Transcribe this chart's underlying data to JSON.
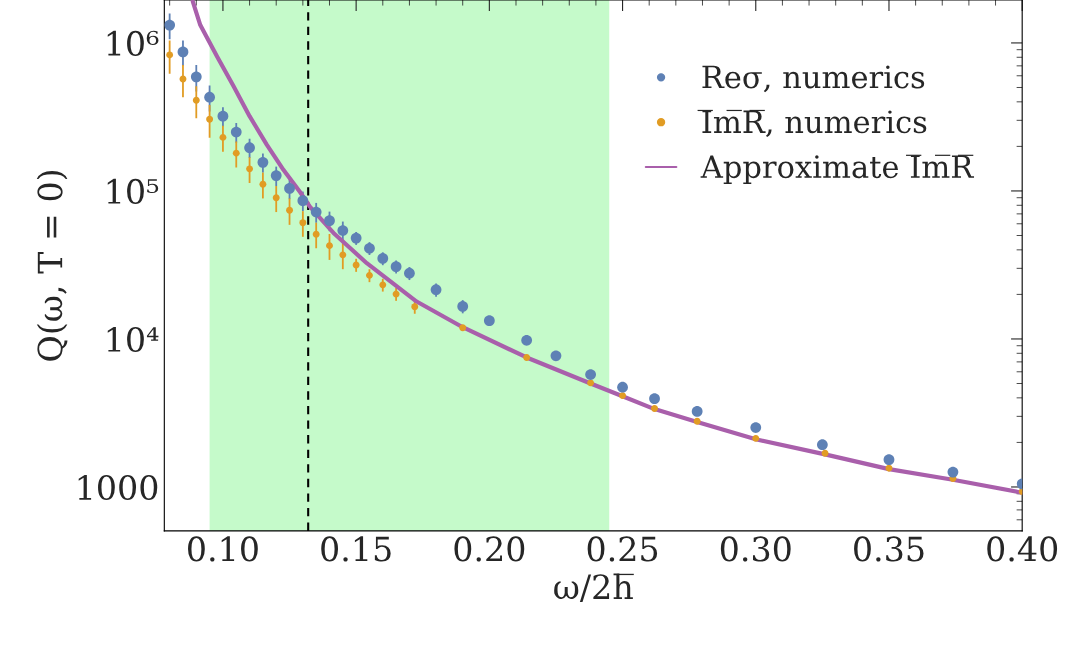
{
  "chart_data": {
    "type": "scatter",
    "xlabel": "ω/2h̅",
    "ylabel": "Q(ω, T = 0)",
    "xlim": [
      0.078,
      0.4
    ],
    "xticks": [
      {
        "value": 0.1,
        "label": "0.10"
      },
      {
        "value": 0.15,
        "label": "0.15"
      },
      {
        "value": 0.2,
        "label": "0.20"
      },
      {
        "value": 0.25,
        "label": "0.25"
      },
      {
        "value": 0.3,
        "label": "0.30"
      },
      {
        "value": 0.35,
        "label": "0.35"
      },
      {
        "value": 0.4,
        "label": "0.40"
      }
    ],
    "ylim": [
      505,
      1950000
    ],
    "yticks": [
      1000,
      {
        "value": 10000,
        "label": "10⁴"
      },
      {
        "value": 100000,
        "label": "10⁵"
      },
      {
        "value": 1000000,
        "label": "10⁶"
      }
    ],
    "log": "y",
    "grid": false,
    "legend": "top right",
    "bands": [
      {
        "axis": "x",
        "from": 0.095,
        "to": 0.245,
        "color": "#7ff58a"
      }
    ],
    "ref_lines": [
      {
        "axis": "x",
        "value": 0.132,
        "color": "#000000",
        "line_style": "dashed"
      }
    ],
    "series": [
      {
        "name": "Reσ, numerics",
        "marker": "circle",
        "color": "#5e81b5",
        "x": [
          0.08,
          0.085,
          0.09,
          0.095,
          0.1,
          0.105,
          0.11,
          0.115,
          0.12,
          0.125,
          0.13,
          0.135,
          0.14,
          0.145,
          0.15,
          0.155,
          0.16,
          0.165,
          0.17,
          0.18,
          0.19,
          0.2,
          0.214,
          0.225,
          0.238,
          0.25,
          0.262,
          0.278,
          0.3,
          0.325,
          0.35,
          0.374,
          0.4
        ],
        "values": [
          1320000,
          870000,
          590000,
          430000,
          320000,
          250000,
          196000,
          156000,
          127000,
          104000,
          86000,
          72000,
          63000,
          54000,
          48000,
          41000,
          35000,
          30800,
          27800,
          21500,
          16600,
          13300,
          9800,
          7700,
          5750,
          4720,
          3950,
          3240,
          2520,
          1930,
          1530,
          1260,
          1050
        ],
        "errors": [
          260000,
          170000,
          120000,
          86000,
          48000,
          38000,
          29000,
          23000,
          19000,
          16000,
          13000,
          11000,
          9500,
          8100,
          4800,
          4100,
          3500,
          3100,
          2800,
          2200,
          1700,
          520,
          390,
          300,
          230,
          190,
          160,
          130,
          100,
          80,
          60,
          50,
          40
        ]
      },
      {
        "name": "I̅m̅R̅, numerics",
        "marker": "circle",
        "color": "#e19c24",
        "x": [
          0.08,
          0.085,
          0.09,
          0.095,
          0.1,
          0.105,
          0.11,
          0.115,
          0.12,
          0.125,
          0.13,
          0.135,
          0.14,
          0.145,
          0.15,
          0.155,
          0.16,
          0.165,
          0.172,
          0.19,
          0.214,
          0.238,
          0.25,
          0.262,
          0.278,
          0.3,
          0.326,
          0.35,
          0.374,
          0.4
        ],
        "values": [
          830000,
          570000,
          410000,
          305000,
          230000,
          180000,
          141000,
          111000,
          90000,
          74000,
          61000,
          51000,
          42700,
          37000,
          31600,
          26900,
          23200,
          20100,
          16500,
          11900,
          7500,
          5050,
          4140,
          3390,
          2780,
          2130,
          1690,
          1340,
          1140,
          933
        ],
        "errors": [
          210000,
          140000,
          100000,
          76000,
          46000,
          36000,
          28000,
          22000,
          18000,
          15000,
          12000,
          10000,
          8500,
          7400,
          3200,
          2700,
          2300,
          2000,
          1700,
          480,
          300,
          200,
          170,
          140,
          110,
          85,
          70,
          55,
          45,
          37
        ]
      },
      {
        "name": "Approximate I̅m̅R̅",
        "type": "line",
        "marker": "none",
        "line_style": "solid",
        "color": "#a95fab",
        "x": [
          0.0887,
          0.0915,
          0.0978,
          0.104,
          0.11,
          0.1165,
          0.1227,
          0.129,
          0.1327,
          0.1415,
          0.154,
          0.1727,
          0.19,
          0.214,
          0.238,
          0.25,
          0.262,
          0.278,
          0.3,
          0.326,
          0.35,
          0.374,
          0.4
        ],
        "values": [
          1900000,
          1320000,
          810000,
          510000,
          320000,
          205000,
          139000,
          98000,
          78000,
          52000,
          32500,
          17900,
          12000,
          7500,
          5000,
          4100,
          3360,
          2750,
          2100,
          1660,
          1320,
          1120,
          915
        ]
      }
    ]
  }
}
